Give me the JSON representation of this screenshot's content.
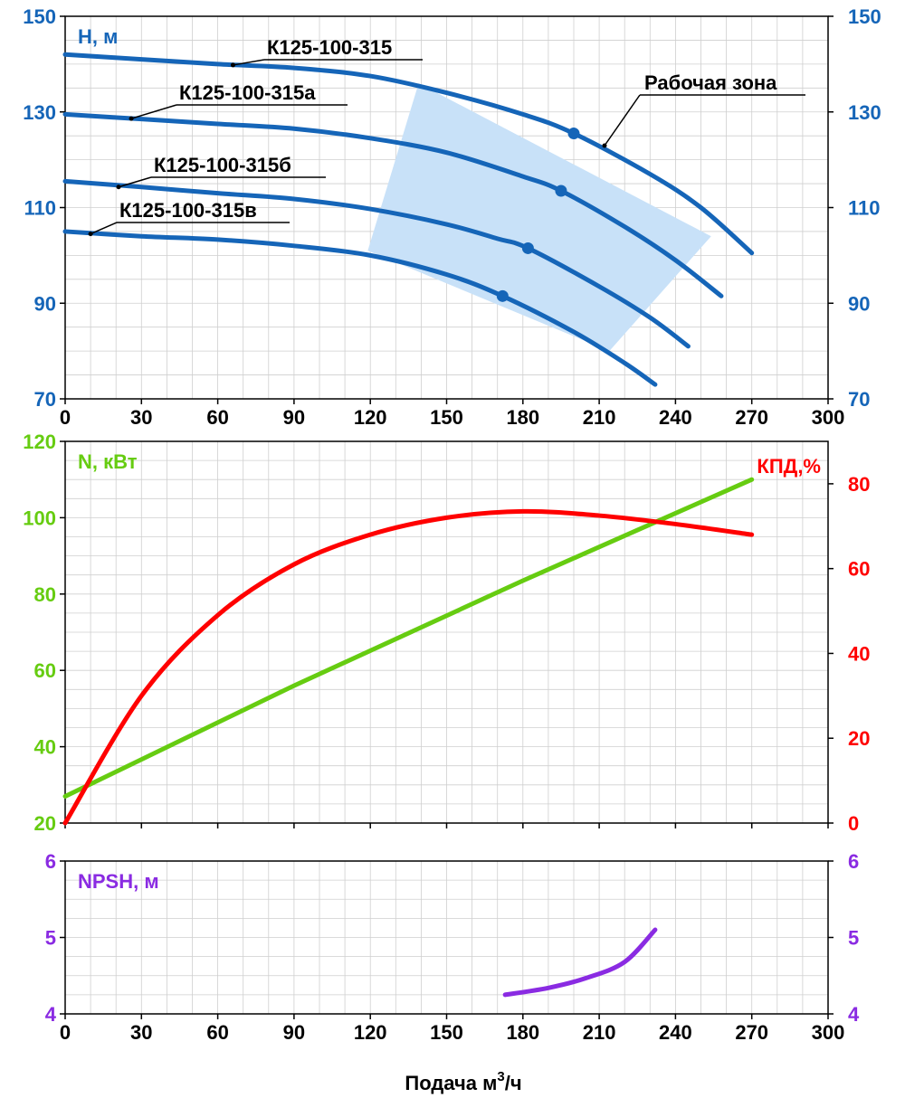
{
  "colors": {
    "head": "#1565b8",
    "power": "#66cc11",
    "efficiency": "#ff0000",
    "npsh": "#8a2be2",
    "zone": "#c8e1f8",
    "grid": "#cfcfcf",
    "frame": "#000000"
  },
  "x_label_main": "Подача м",
  "x_label_sup": "3",
  "x_label_tail": "/ч",
  "chart_data": [
    {
      "type": "line",
      "panel": "head",
      "ylabel": "H, м",
      "xlim": [
        0,
        300
      ],
      "ylim": [
        70,
        150
      ],
      "x_ticks": [
        0,
        30,
        60,
        90,
        120,
        150,
        180,
        210,
        240,
        270,
        300
      ],
      "y_ticks": [
        70,
        90,
        110,
        130,
        150
      ],
      "y_ticks_right": [
        70,
        90,
        110,
        130,
        150
      ],
      "zone_label": "Рабочая зона",
      "working_zone": [
        [
          119,
          101
        ],
        [
          139,
          136
        ],
        [
          254,
          104
        ],
        [
          214,
          80
        ]
      ],
      "series": [
        {
          "name": "К125-100-315",
          "points": [
            [
              0,
              142
            ],
            [
              30,
              141
            ],
            [
              60,
              140
            ],
            [
              90,
              139.2
            ],
            [
              120,
              137.5
            ],
            [
              150,
              134
            ],
            [
              180,
              129.5
            ],
            [
              200,
              125.5
            ],
            [
              230,
              117
            ],
            [
              250,
              110
            ],
            [
              270,
              100.5
            ]
          ],
          "marker": [
            200,
            125.5
          ],
          "label_at": [
            66,
            139.8
          ]
        },
        {
          "name": "К125-100-315а",
          "points": [
            [
              0,
              129.5
            ],
            [
              30,
              128.5
            ],
            [
              60,
              127.5
            ],
            [
              90,
              126.5
            ],
            [
              120,
              124.5
            ],
            [
              150,
              121.5
            ],
            [
              180,
              116.5
            ],
            [
              195,
              113.5
            ],
            [
              220,
              106
            ],
            [
              240,
              99
            ],
            [
              258,
              91.5
            ]
          ],
          "marker": [
            195,
            113.5
          ],
          "label_at": [
            26,
            128.6
          ]
        },
        {
          "name": "К125-100-315б",
          "points": [
            [
              0,
              115.5
            ],
            [
              30,
              114.3
            ],
            [
              60,
              113
            ],
            [
              90,
              111.8
            ],
            [
              120,
              109.7
            ],
            [
              150,
              106.5
            ],
            [
              170,
              103.5
            ],
            [
              182,
              101.5
            ],
            [
              210,
              93.5
            ],
            [
              230,
              87
            ],
            [
              245,
              81
            ]
          ],
          "marker": [
            182,
            101.5
          ],
          "label_at": [
            21,
            114.3
          ]
        },
        {
          "name": "К125-100-315в",
          "points": [
            [
              0,
              105
            ],
            [
              30,
              104
            ],
            [
              60,
              103.3
            ],
            [
              90,
              102
            ],
            [
              120,
              100
            ],
            [
              150,
              96
            ],
            [
              172,
              91.5
            ],
            [
              200,
              84
            ],
            [
              220,
              77.5
            ],
            [
              232,
              73
            ]
          ],
          "marker": [
            172,
            91.5
          ],
          "label_at": [
            10,
            104.5
          ]
        }
      ]
    },
    {
      "type": "line",
      "panel": "power-efficiency",
      "ylabel": "N, кВт",
      "ylabel_right": "КПД,%",
      "xlim": [
        0,
        300
      ],
      "ylim": [
        20,
        120
      ],
      "ylim_right": [
        0,
        90
      ],
      "x_ticks": [
        0,
        30,
        60,
        90,
        120,
        150,
        180,
        210,
        240,
        270,
        300
      ],
      "y_ticks": [
        20,
        40,
        60,
        80,
        100,
        120
      ],
      "y_ticks_right": [
        0,
        20,
        40,
        60,
        80
      ],
      "series": [
        {
          "name": "N",
          "axis": "left",
          "points": [
            [
              0,
              27
            ],
            [
              90,
              56
            ],
            [
              180,
              83.5
            ],
            [
              270,
              110
            ]
          ]
        },
        {
          "name": "КПД",
          "axis": "right",
          "points": [
            [
              0,
              0
            ],
            [
              30,
              30
            ],
            [
              60,
              49
            ],
            [
              90,
              61
            ],
            [
              120,
              68
            ],
            [
              150,
              72
            ],
            [
              180,
              73.5
            ],
            [
              210,
              72.5
            ],
            [
              240,
              70.5
            ],
            [
              270,
              68
            ]
          ]
        }
      ]
    },
    {
      "type": "line",
      "panel": "npsh",
      "ylabel": "NPSH, м",
      "xlim": [
        0,
        300
      ],
      "ylim": [
        4,
        6
      ],
      "x_ticks": [
        0,
        30,
        60,
        90,
        120,
        150,
        180,
        210,
        240,
        270,
        300
      ],
      "y_ticks": [
        4,
        5,
        6
      ],
      "y_ticks_right": [
        4,
        5,
        6
      ],
      "series": [
        {
          "name": "NPSH",
          "points": [
            [
              173,
              4.25
            ],
            [
              190,
              4.34
            ],
            [
              205,
              4.47
            ],
            [
              220,
              4.68
            ],
            [
              232,
              5.1
            ]
          ]
        }
      ]
    }
  ]
}
